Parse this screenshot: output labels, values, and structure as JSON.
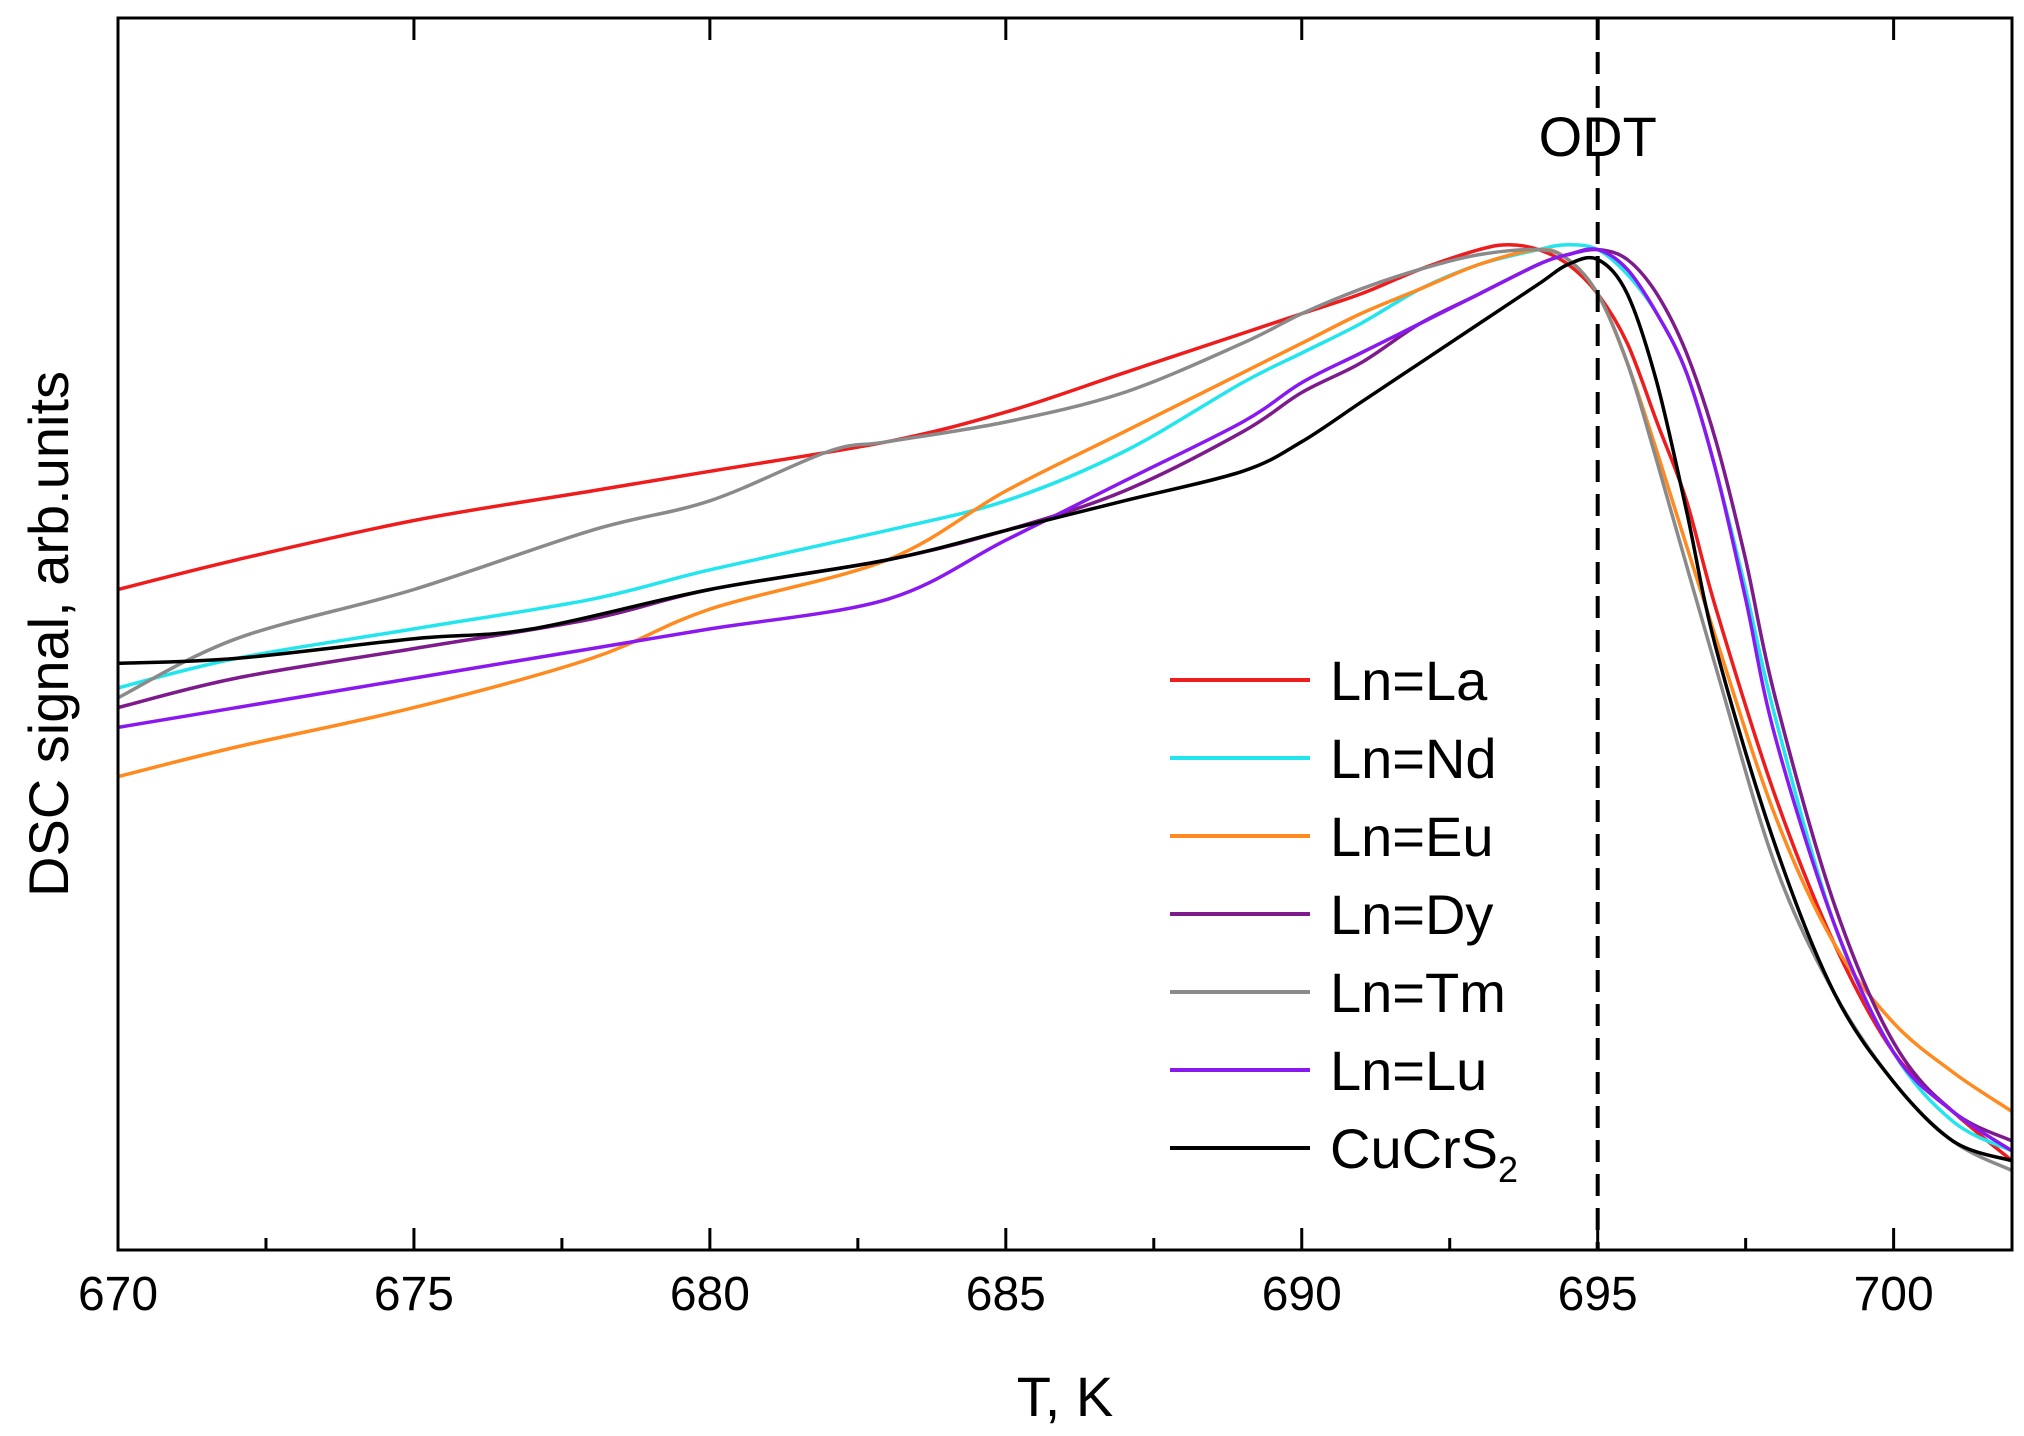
{
  "chart_data": {
    "type": "line",
    "title": "",
    "xlabel": "T, K",
    "ylabel": "DSC signal, arb.units",
    "xlim": [
      670,
      702
    ],
    "ylim": [
      0,
      1
    ],
    "x_ticks": [
      670,
      675,
      680,
      685,
      690,
      695,
      700
    ],
    "x_tick_labels": [
      "670",
      "675",
      "680",
      "685",
      "690",
      "695",
      "700"
    ],
    "grid": false,
    "legend_position": "bottom-right",
    "annotations": [
      {
        "text": "ODT",
        "x": 695,
        "style": "dashed vertical line"
      }
    ],
    "series": [
      {
        "name": "Ln=La",
        "color": "#ee1c1c",
        "points": [
          [
            670,
            0.63
          ],
          [
            672,
            0.66
          ],
          [
            675,
            0.7
          ],
          [
            678,
            0.73
          ],
          [
            680,
            0.75
          ],
          [
            683,
            0.78
          ],
          [
            685,
            0.81
          ],
          [
            687,
            0.85
          ],
          [
            689,
            0.89
          ],
          [
            690,
            0.91
          ],
          [
            691,
            0.93
          ],
          [
            692,
            0.955
          ],
          [
            693,
            0.975
          ],
          [
            693.5,
            0.98
          ],
          [
            694,
            0.975
          ],
          [
            694.5,
            0.96
          ],
          [
            695,
            0.93
          ],
          [
            695.5,
            0.88
          ],
          [
            696,
            0.8
          ],
          [
            696.5,
            0.72
          ],
          [
            697,
            0.61
          ],
          [
            698,
            0.42
          ],
          [
            699,
            0.27
          ],
          [
            700,
            0.16
          ],
          [
            701,
            0.1
          ],
          [
            702,
            0.05
          ]
        ]
      },
      {
        "name": "Ln=Nd",
        "color": "#22e5ee",
        "points": [
          [
            670,
            0.53
          ],
          [
            672,
            0.56
          ],
          [
            675,
            0.59
          ],
          [
            678,
            0.62
          ],
          [
            680,
            0.65
          ],
          [
            683,
            0.69
          ],
          [
            685,
            0.72
          ],
          [
            687,
            0.77
          ],
          [
            689,
            0.84
          ],
          [
            690,
            0.87
          ],
          [
            691,
            0.9
          ],
          [
            692,
            0.935
          ],
          [
            693,
            0.96
          ],
          [
            694,
            0.975
          ],
          [
            694.5,
            0.98
          ],
          [
            695,
            0.975
          ],
          [
            695.5,
            0.95
          ],
          [
            696,
            0.91
          ],
          [
            696.5,
            0.85
          ],
          [
            697,
            0.75
          ],
          [
            697.5,
            0.63
          ],
          [
            698,
            0.5
          ],
          [
            699,
            0.29
          ],
          [
            700,
            0.16
          ],
          [
            701,
            0.09
          ],
          [
            702,
            0.06
          ]
        ]
      },
      {
        "name": "Ln=Eu",
        "color": "#ff8a1f",
        "points": [
          [
            670,
            0.44
          ],
          [
            672,
            0.47
          ],
          [
            675,
            0.51
          ],
          [
            678,
            0.56
          ],
          [
            680,
            0.61
          ],
          [
            683,
            0.66
          ],
          [
            685,
            0.73
          ],
          [
            687,
            0.79
          ],
          [
            689,
            0.85
          ],
          [
            690,
            0.88
          ],
          [
            691,
            0.91
          ],
          [
            692,
            0.935
          ],
          [
            693,
            0.96
          ],
          [
            694,
            0.975
          ],
          [
            694.5,
            0.965
          ],
          [
            695,
            0.93
          ],
          [
            695.5,
            0.86
          ],
          [
            696,
            0.77
          ],
          [
            697,
            0.58
          ],
          [
            698,
            0.4
          ],
          [
            699,
            0.27
          ],
          [
            700,
            0.19
          ],
          [
            701,
            0.14
          ],
          [
            702,
            0.1
          ]
        ]
      },
      {
        "name": "Ln=Dy",
        "color": "#7d1b8c",
        "points": [
          [
            670,
            0.51
          ],
          [
            672,
            0.54
          ],
          [
            675,
            0.57
          ],
          [
            678,
            0.6
          ],
          [
            680,
            0.63
          ],
          [
            683,
            0.66
          ],
          [
            685,
            0.69
          ],
          [
            687,
            0.73
          ],
          [
            689,
            0.79
          ],
          [
            690,
            0.83
          ],
          [
            691,
            0.86
          ],
          [
            692,
            0.9
          ],
          [
            693,
            0.93
          ],
          [
            694,
            0.96
          ],
          [
            694.5,
            0.97
          ],
          [
            695,
            0.975
          ],
          [
            695.5,
            0.965
          ],
          [
            696,
            0.93
          ],
          [
            696.5,
            0.87
          ],
          [
            697,
            0.78
          ],
          [
            697.5,
            0.66
          ],
          [
            698,
            0.52
          ],
          [
            699,
            0.31
          ],
          [
            700,
            0.17
          ],
          [
            701,
            0.1
          ],
          [
            702,
            0.07
          ]
        ]
      },
      {
        "name": "Ln=Tm",
        "color": "#8a8a8a",
        "points": [
          [
            670,
            0.52
          ],
          [
            672,
            0.58
          ],
          [
            675,
            0.63
          ],
          [
            678,
            0.69
          ],
          [
            680,
            0.72
          ],
          [
            682,
            0.77
          ],
          [
            683,
            0.78
          ],
          [
            685,
            0.8
          ],
          [
            687,
            0.83
          ],
          [
            689,
            0.88
          ],
          [
            690,
            0.91
          ],
          [
            691,
            0.935
          ],
          [
            692,
            0.955
          ],
          [
            693,
            0.97
          ],
          [
            694,
            0.975
          ],
          [
            694.5,
            0.965
          ],
          [
            695,
            0.93
          ],
          [
            695.5,
            0.86
          ],
          [
            696,
            0.76
          ],
          [
            697,
            0.55
          ],
          [
            698,
            0.35
          ],
          [
            699,
            0.22
          ],
          [
            700,
            0.13
          ],
          [
            701,
            0.07
          ],
          [
            702,
            0.04
          ]
        ]
      },
      {
        "name": "Ln=Lu",
        "color": "#8a19f0",
        "points": [
          [
            670,
            0.49
          ],
          [
            672,
            0.51
          ],
          [
            675,
            0.54
          ],
          [
            678,
            0.57
          ],
          [
            680,
            0.59
          ],
          [
            683,
            0.62
          ],
          [
            685,
            0.68
          ],
          [
            687,
            0.74
          ],
          [
            689,
            0.8
          ],
          [
            690,
            0.84
          ],
          [
            691,
            0.87
          ],
          [
            692,
            0.9
          ],
          [
            693,
            0.93
          ],
          [
            694,
            0.96
          ],
          [
            694.5,
            0.97
          ],
          [
            695,
            0.975
          ],
          [
            695.5,
            0.955
          ],
          [
            696,
            0.91
          ],
          [
            696.5,
            0.85
          ],
          [
            697,
            0.75
          ],
          [
            697.5,
            0.62
          ],
          [
            698,
            0.48
          ],
          [
            699,
            0.29
          ],
          [
            700,
            0.16
          ],
          [
            701,
            0.1
          ],
          [
            702,
            0.06
          ]
        ]
      },
      {
        "name": "CuCrS",
        "name_sub": "2",
        "color": "#000000",
        "points": [
          [
            670,
            0.555
          ],
          [
            672,
            0.56
          ],
          [
            675,
            0.58
          ],
          [
            677,
            0.59
          ],
          [
            680,
            0.63
          ],
          [
            683,
            0.66
          ],
          [
            685,
            0.69
          ],
          [
            687,
            0.72
          ],
          [
            689,
            0.75
          ],
          [
            690,
            0.78
          ],
          [
            691,
            0.82
          ],
          [
            692,
            0.86
          ],
          [
            693,
            0.9
          ],
          [
            694,
            0.94
          ],
          [
            694.5,
            0.96
          ],
          [
            695,
            0.965
          ],
          [
            695.5,
            0.93
          ],
          [
            696,
            0.84
          ],
          [
            696.5,
            0.71
          ],
          [
            697,
            0.57
          ],
          [
            698,
            0.37
          ],
          [
            699,
            0.22
          ],
          [
            700,
            0.13
          ],
          [
            701,
            0.07
          ],
          [
            702,
            0.05
          ]
        ]
      }
    ]
  }
}
